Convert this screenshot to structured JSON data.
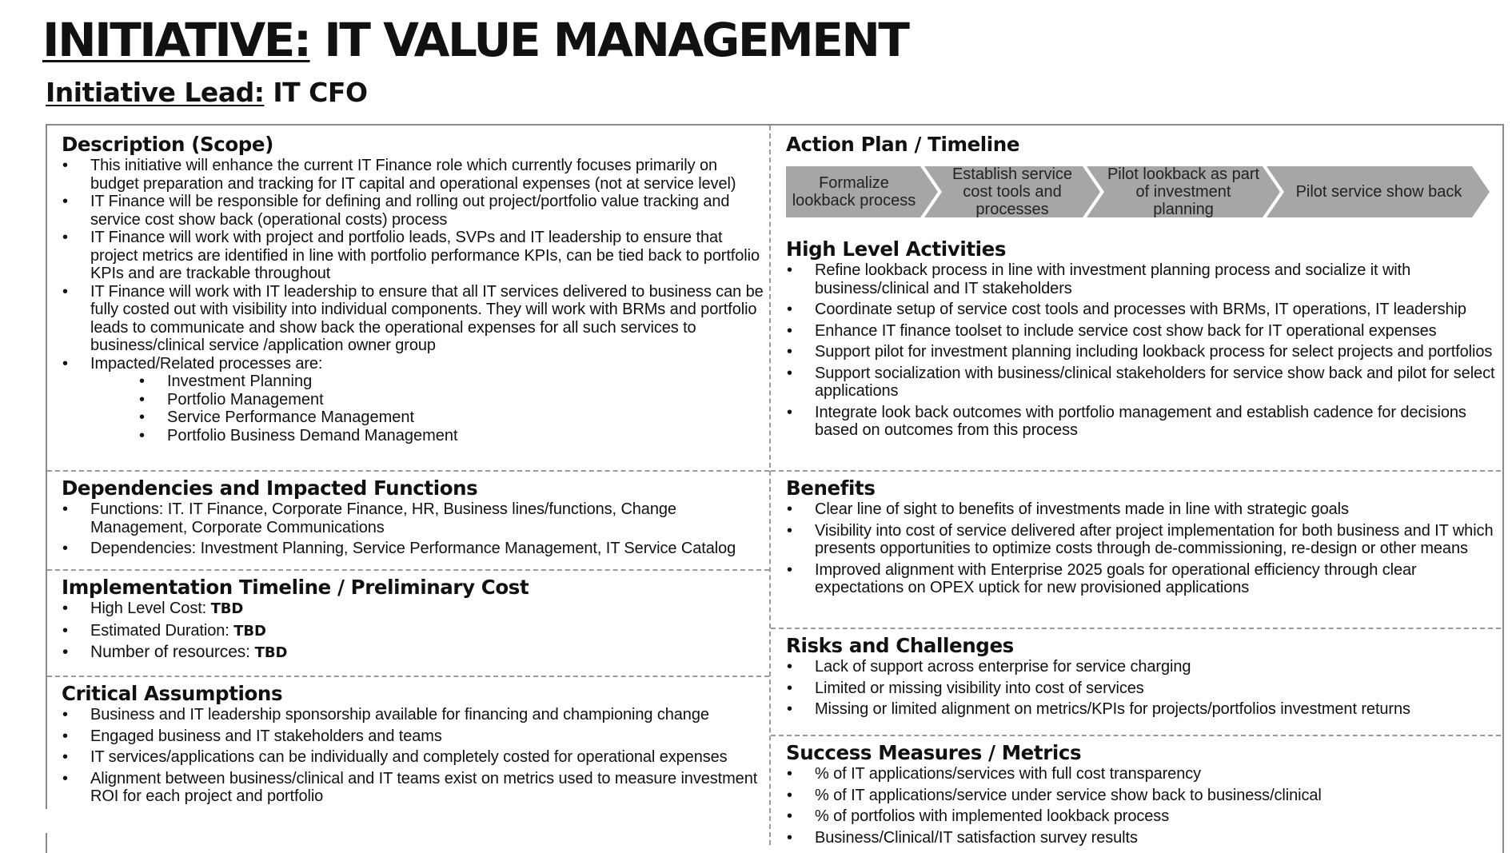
{
  "header": {
    "title_prefix": "INITIATIVE:",
    "title_rest": "IT VALUE MANAGEMENT",
    "lead_label": "Initiative Lead:",
    "lead_value": "IT CFO"
  },
  "description": {
    "heading": "Description (Scope)",
    "items": [
      "This initiative will enhance the current IT Finance role which currently focuses primarily on budget preparation and tracking for IT capital and operational expenses (not at service level)",
      "IT Finance will be responsible for defining and rolling out project/portfolio value tracking and service cost show back (operational costs) process",
      "IT Finance will work with project and portfolio leads, SVPs and IT leadership to ensure that project metrics are identified in line with portfolio performance KPIs, can be tied back to portfolio KPIs and are trackable throughout",
      "IT Finance will work with IT leadership to ensure that all IT services delivered to business can be fully costed out with visibility into individual components. They will work with BRMs and portfolio leads to communicate and show back the operational expenses for all such services to business/clinical service /application owner group",
      "Impacted/Related processes are:"
    ],
    "sub_items": [
      "Investment Planning",
      "Portfolio Management",
      "Service Performance Management",
      "Portfolio Business Demand Management"
    ]
  },
  "dependencies": {
    "heading": "Dependencies and Impacted Functions",
    "items": [
      "Functions: IT. IT Finance, Corporate Finance, HR, Business lines/functions, Change Management, Corporate Communications",
      "Dependencies: Investment Planning, Service Performance Management, IT Service Catalog"
    ]
  },
  "implementation": {
    "heading": "Implementation Timeline / Preliminary Cost",
    "items": [
      {
        "label": "High Level Cost: ",
        "value": "TBD"
      },
      {
        "label": "Estimated Duration: ",
        "value": "TBD"
      },
      {
        "label": "Number of resources: ",
        "value": "TBD"
      }
    ]
  },
  "assumptions": {
    "heading": "Critical Assumptions",
    "items": [
      "Business and IT leadership sponsorship available for financing and championing change",
      "Engaged business and IT stakeholders and teams",
      "IT services/applications can be individually and completely costed for operational expenses",
      "Alignment between business/clinical and IT teams exist on metrics used to measure investment ROI for each project and portfolio"
    ]
  },
  "action_plan": {
    "heading": "Action Plan / Timeline",
    "steps": [
      "Formalize lookback process",
      "Establish service cost tools and processes",
      "Pilot lookback as part of investment planning",
      "Pilot service show back"
    ],
    "chevron_color": "#a6a6a6"
  },
  "activities": {
    "heading": "High Level Activities",
    "items": [
      "Refine lookback process in line with investment planning process and socialize it with business/clinical and IT stakeholders",
      "Coordinate setup of service cost tools and processes with BRMs, IT operations, IT leadership",
      "Enhance IT finance toolset to include service cost show back for IT operational expenses",
      "Support pilot for investment planning including lookback process for select projects and portfolios",
      "Support socialization with business/clinical stakeholders for service show back and pilot for select applications",
      "Integrate look back outcomes with portfolio management and establish cadence for decisions based on outcomes from this process"
    ]
  },
  "benefits": {
    "heading": "Benefits",
    "items": [
      "Clear line of sight to benefits of investments made in line with strategic goals",
      "Visibility into cost of service delivered after project implementation for both business and IT which presents opportunities to optimize costs through de-commissioning, re-design or other means",
      "Improved alignment with Enterprise 2025 goals for operational efficiency through clear expectations on OPEX uptick for new provisioned applications"
    ]
  },
  "risks": {
    "heading": "Risks and Challenges",
    "items": [
      "Lack of support across enterprise for service charging",
      "Limited or missing visibility into cost of services",
      "Missing or limited alignment on metrics/KPIs for projects/portfolios investment returns"
    ]
  },
  "success": {
    "heading": "Success Measures / Metrics",
    "items": [
      "% of IT applications/services with full cost transparency",
      "% of IT applications/service under service show back to business/clinical",
      "% of portfolios with implemented lookback process",
      "Business/Clinical/IT satisfaction survey results"
    ]
  }
}
